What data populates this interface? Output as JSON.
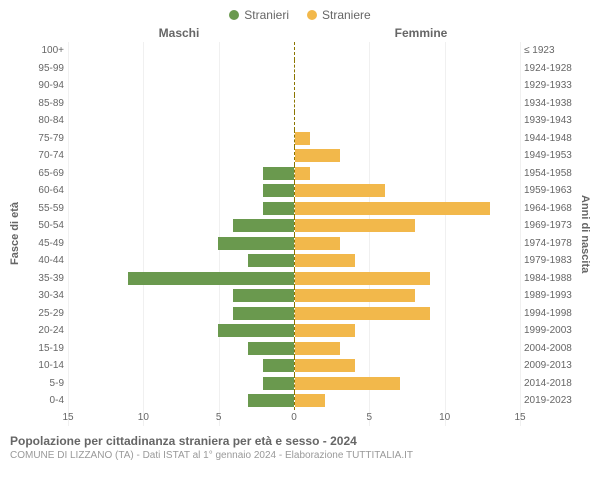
{
  "legend": {
    "male": {
      "label": "Stranieri",
      "color": "#6a994e"
    },
    "female": {
      "label": "Straniere",
      "color": "#f2b84b"
    }
  },
  "column_headers": {
    "left": "Maschi",
    "right": "Femmine"
  },
  "axis_labels": {
    "left": "Fasce di età",
    "right": "Anni di nascita"
  },
  "chart": {
    "type": "population-pyramid",
    "xmax": 15,
    "xticks": [
      15,
      10,
      5,
      0,
      5,
      10,
      15
    ],
    "background_color": "#ffffff",
    "grid_color": "#f0f0f0",
    "center_line_color": "#8B7500",
    "male_color": "#6a994e",
    "female_color": "#f2b84b",
    "label_fontsize": 10,
    "rows": [
      {
        "age": "100+",
        "birth": "≤ 1923",
        "m": 0,
        "f": 0
      },
      {
        "age": "95-99",
        "birth": "1924-1928",
        "m": 0,
        "f": 0
      },
      {
        "age": "90-94",
        "birth": "1929-1933",
        "m": 0,
        "f": 0
      },
      {
        "age": "85-89",
        "birth": "1934-1938",
        "m": 0,
        "f": 0
      },
      {
        "age": "80-84",
        "birth": "1939-1943",
        "m": 0,
        "f": 0
      },
      {
        "age": "75-79",
        "birth": "1944-1948",
        "m": 0,
        "f": 1
      },
      {
        "age": "70-74",
        "birth": "1949-1953",
        "m": 0,
        "f": 3
      },
      {
        "age": "65-69",
        "birth": "1954-1958",
        "m": 2,
        "f": 1
      },
      {
        "age": "60-64",
        "birth": "1959-1963",
        "m": 2,
        "f": 6
      },
      {
        "age": "55-59",
        "birth": "1964-1968",
        "m": 2,
        "f": 13
      },
      {
        "age": "50-54",
        "birth": "1969-1973",
        "m": 4,
        "f": 8
      },
      {
        "age": "45-49",
        "birth": "1974-1978",
        "m": 5,
        "f": 3
      },
      {
        "age": "40-44",
        "birth": "1979-1983",
        "m": 3,
        "f": 4
      },
      {
        "age": "35-39",
        "birth": "1984-1988",
        "m": 11,
        "f": 9
      },
      {
        "age": "30-34",
        "birth": "1989-1993",
        "m": 4,
        "f": 8
      },
      {
        "age": "25-29",
        "birth": "1994-1998",
        "m": 4,
        "f": 9
      },
      {
        "age": "20-24",
        "birth": "1999-2003",
        "m": 5,
        "f": 4
      },
      {
        "age": "15-19",
        "birth": "2004-2008",
        "m": 3,
        "f": 3
      },
      {
        "age": "10-14",
        "birth": "2009-2013",
        "m": 2,
        "f": 4
      },
      {
        "age": "5-9",
        "birth": "2014-2018",
        "m": 2,
        "f": 7
      },
      {
        "age": "0-4",
        "birth": "2019-2023",
        "m": 3,
        "f": 2
      }
    ]
  },
  "footer": {
    "title": "Popolazione per cittadinanza straniera per età e sesso - 2024",
    "subtitle": "COMUNE DI LIZZANO (TA) - Dati ISTAT al 1° gennaio 2024 - Elaborazione TUTTITALIA.IT"
  }
}
